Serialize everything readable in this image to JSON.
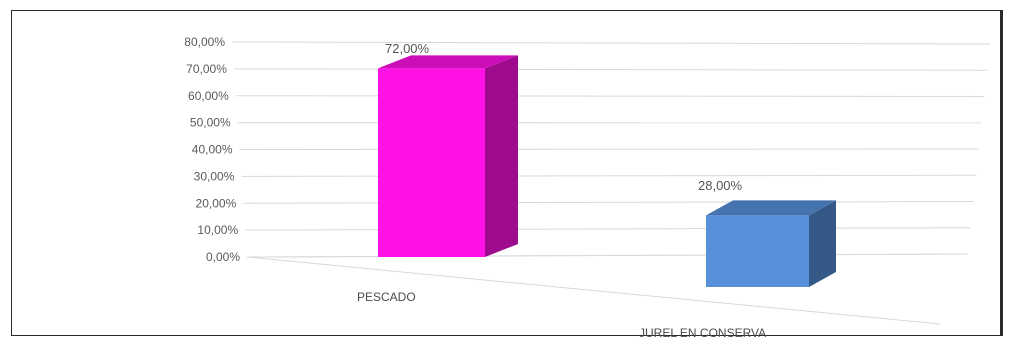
{
  "chart_data": {
    "type": "bar",
    "style": "3d-perspective",
    "categories": [
      "PESCADO",
      "JUREL EN CONSERVA"
    ],
    "values": [
      72.0,
      28.0
    ],
    "data_labels": [
      "72,00%",
      "28,00%"
    ],
    "ylim": [
      0,
      80
    ],
    "ytick_labels": [
      "0,00%",
      "10,00%",
      "20,00%",
      "30,00%",
      "40,00%",
      "50,00%",
      "60,00%",
      "70,00%",
      "80,00%"
    ],
    "title": "",
    "xlabel": "",
    "ylabel": "",
    "grid": true,
    "legend": "none",
    "colors": [
      "#ff12e6",
      "#5590d8"
    ]
  }
}
